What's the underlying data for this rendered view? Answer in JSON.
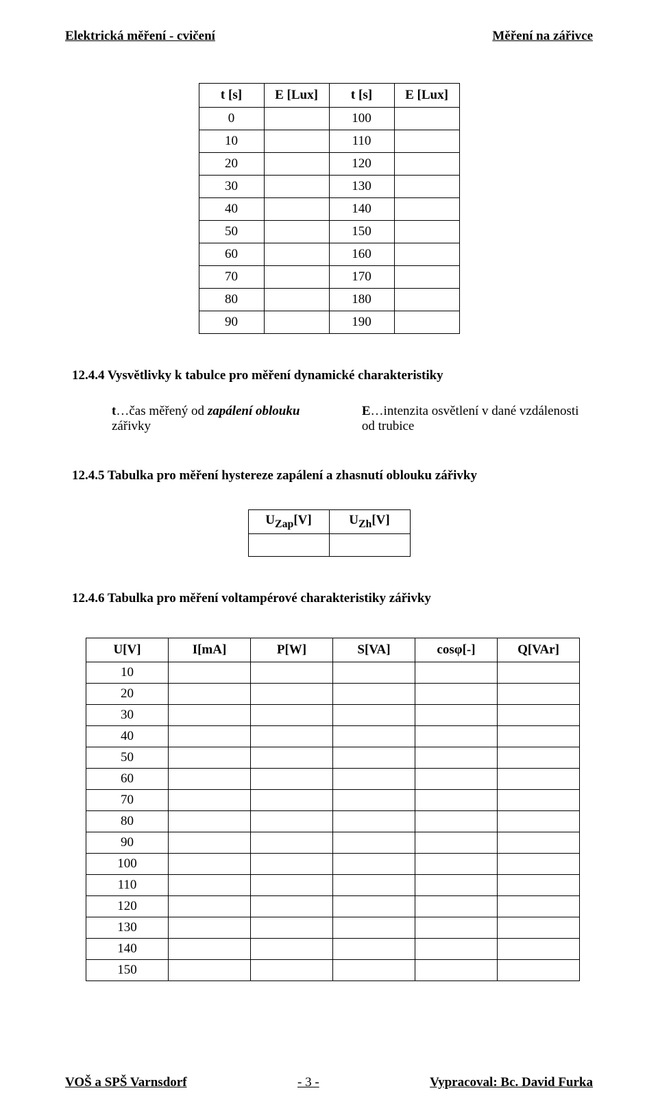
{
  "header": {
    "left": "Elektrická měření - cvičení",
    "right": "Měření na zářivce"
  },
  "footer": {
    "left": "VOŠ a SPŠ Varnsdorf",
    "center": "- 3 -",
    "right": "Vypracoval: Bc. David Furka"
  },
  "table1": {
    "type": "table",
    "columns": [
      "t [s]",
      "E [Lux]",
      "t [s]",
      "E [Lux]"
    ],
    "rows": [
      [
        "0",
        "",
        "100",
        ""
      ],
      [
        "10",
        "",
        "110",
        ""
      ],
      [
        "20",
        "",
        "120",
        ""
      ],
      [
        "30",
        "",
        "130",
        ""
      ],
      [
        "40",
        "",
        "140",
        ""
      ],
      [
        "50",
        "",
        "150",
        ""
      ],
      [
        "60",
        "",
        "160",
        ""
      ],
      [
        "70",
        "",
        "170",
        ""
      ],
      [
        "80",
        "",
        "180",
        ""
      ],
      [
        "90",
        "",
        "190",
        ""
      ]
    ]
  },
  "sec_12_4_4": {
    "title": "12.4.4 Vysvětlivky k tabulce pro měření dynamické charakteristiky",
    "legend": {
      "t_bold": "t",
      "t_text": "…čas měřený od ",
      "t_ital": "zapálení oblouku",
      "t_after": " zářivky",
      "e_bold": "E",
      "e_text": "…intenzita osvětlení v dané vzdálenosti od trubice"
    }
  },
  "sec_12_4_5": {
    "title": "12.4.5   Tabulka pro měření hystereze zapálení a zhasnutí oblouku zářivky"
  },
  "table2": {
    "type": "table",
    "columns_html": [
      "U<sub>Zap</sub>[V]",
      "U<sub>Zh</sub>[V]"
    ],
    "rows": [
      [
        "",
        ""
      ]
    ]
  },
  "sec_12_4_6": {
    "title": "12.4.6   Tabulka pro měření voltampérové charakteristiky zářivky"
  },
  "table3": {
    "type": "table",
    "columns": [
      "U[V]",
      "I[mA]",
      "P[W]",
      "S[VA]",
      "cosφ[-]",
      "Q[VAr]"
    ],
    "rows": [
      [
        "10",
        "",
        "",
        "",
        "",
        ""
      ],
      [
        "20",
        "",
        "",
        "",
        "",
        ""
      ],
      [
        "30",
        "",
        "",
        "",
        "",
        ""
      ],
      [
        "40",
        "",
        "",
        "",
        "",
        ""
      ],
      [
        "50",
        "",
        "",
        "",
        "",
        ""
      ],
      [
        "60",
        "",
        "",
        "",
        "",
        ""
      ],
      [
        "70",
        "",
        "",
        "",
        "",
        ""
      ],
      [
        "80",
        "",
        "",
        "",
        "",
        ""
      ],
      [
        "90",
        "",
        "",
        "",
        "",
        ""
      ],
      [
        "100",
        "",
        "",
        "",
        "",
        ""
      ],
      [
        "110",
        "",
        "",
        "",
        "",
        ""
      ],
      [
        "120",
        "",
        "",
        "",
        "",
        ""
      ],
      [
        "130",
        "",
        "",
        "",
        "",
        ""
      ],
      [
        "140",
        "",
        "",
        "",
        "",
        ""
      ],
      [
        "150",
        "",
        "",
        "",
        "",
        ""
      ]
    ]
  }
}
